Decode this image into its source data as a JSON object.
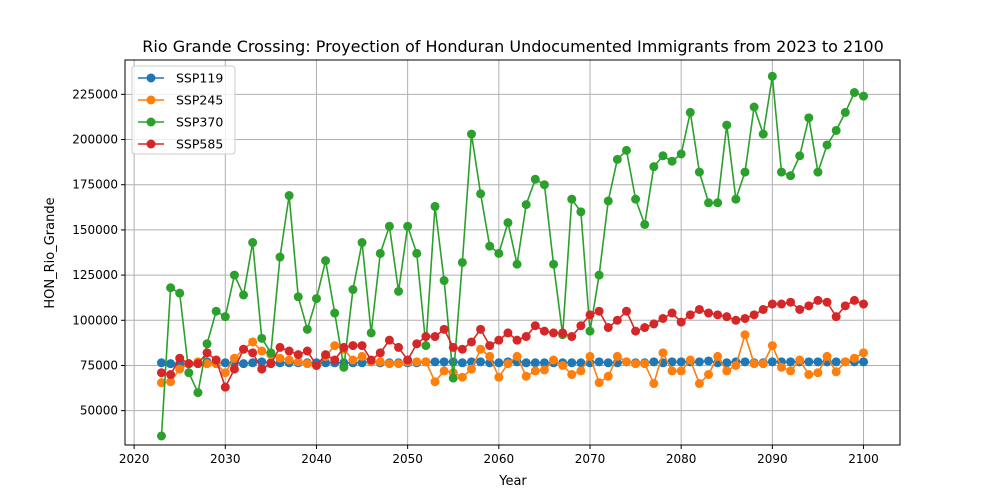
{
  "chart_data": {
    "type": "line",
    "title": "Rio Grande Crossing: Proyection of Honduran Undocumented Immigrants from 2023 to 2100",
    "xlabel": "Year",
    "ylabel": "HON_Rio_Grande",
    "xlim": [
      2019,
      2104
    ],
    "ylim": [
      31000,
      244000
    ],
    "xticks": [
      2020,
      2030,
      2040,
      2050,
      2060,
      2070,
      2080,
      2090,
      2100
    ],
    "yticks": [
      50000,
      75000,
      100000,
      125000,
      150000,
      175000,
      200000,
      225000
    ],
    "grid": true,
    "legend": "top-left",
    "x": [
      2023,
      2024,
      2025,
      2026,
      2027,
      2028,
      2029,
      2030,
      2031,
      2032,
      2033,
      2034,
      2035,
      2036,
      2037,
      2038,
      2039,
      2040,
      2041,
      2042,
      2043,
      2044,
      2045,
      2046,
      2047,
      2048,
      2049,
      2050,
      2051,
      2052,
      2053,
      2054,
      2055,
      2056,
      2057,
      2058,
      2059,
      2060,
      2061,
      2062,
      2063,
      2064,
      2065,
      2066,
      2067,
      2068,
      2069,
      2070,
      2071,
      2072,
      2073,
      2074,
      2075,
      2076,
      2077,
      2078,
      2079,
      2080,
      2081,
      2082,
      2083,
      2084,
      2085,
      2086,
      2087,
      2088,
      2089,
      2090,
      2091,
      2092,
      2093,
      2094,
      2095,
      2096,
      2097,
      2098,
      2099,
      2100
    ],
    "series": [
      {
        "name": "SSP119",
        "color": "#1f77b4",
        "values": [
          76500,
          76000,
          76000,
          76000,
          76200,
          77000,
          76000,
          76500,
          76500,
          76000,
          76500,
          77000,
          76500,
          76500,
          76500,
          76500,
          76500,
          76500,
          76500,
          76500,
          76500,
          76500,
          76500,
          77000,
          76500,
          76500,
          76500,
          76500,
          76500,
          77000,
          77000,
          77000,
          77000,
          76500,
          77000,
          77000,
          76500,
          76500,
          77000,
          77000,
          76500,
          76500,
          76500,
          76500,
          76500,
          76500,
          76500,
          76500,
          77000,
          76500,
          76500,
          77000,
          76500,
          76500,
          77000,
          76500,
          77000,
          77000,
          77000,
          77000,
          77500,
          76500,
          76500,
          77000,
          77000,
          76500,
          76500,
          77000,
          77000,
          77000,
          77000,
          77000,
          77000,
          77000,
          77000,
          77000,
          77000,
          77000
        ]
      },
      {
        "name": "SSP245",
        "color": "#ff7f0e",
        "values": [
          65500,
          66000,
          73000,
          76000,
          77000,
          76000,
          76000,
          71000,
          79000,
          84000,
          88000,
          83000,
          81000,
          79000,
          78000,
          77000,
          76000,
          75000,
          80000,
          86000,
          84000,
          78000,
          80000,
          77000,
          77000,
          76000,
          76000,
          77000,
          77000,
          77000,
          66000,
          72000,
          71000,
          68500,
          73000,
          84000,
          80000,
          68500,
          76000,
          80000,
          69000,
          72000,
          72500,
          78000,
          75000,
          70000,
          72000,
          80000,
          65500,
          69000,
          80000,
          77000,
          76000,
          76000,
          65000,
          82000,
          72000,
          72000,
          78000,
          65000,
          70000,
          80000,
          72000,
          75000,
          92000,
          76000,
          76000,
          86000,
          74000,
          72000,
          78000,
          70000,
          71000,
          80000,
          71500,
          77000,
          79000,
          82000
        ]
      },
      {
        "name": "SSP370",
        "color": "#2ca02c",
        "values": [
          36000,
          118000,
          115000,
          71000,
          60000,
          87000,
          105000,
          102000,
          125000,
          114000,
          143000,
          90000,
          82000,
          135000,
          169000,
          113000,
          95000,
          112000,
          133000,
          104000,
          74000,
          117000,
          143000,
          93000,
          137000,
          152000,
          116000,
          152000,
          137000,
          86000,
          163000,
          122000,
          68000,
          132000,
          203000,
          170000,
          141000,
          137000,
          154000,
          131000,
          164000,
          178000,
          175000,
          131000,
          92000,
          167000,
          160000,
          94000,
          125000,
          166000,
          189000,
          194000,
          167000,
          153000,
          185000,
          191000,
          188000,
          192000,
          215000,
          182000,
          165000,
          165000,
          208000,
          167000,
          182000,
          218000,
          203000,
          235000,
          182000,
          180000,
          191000,
          212000,
          182000,
          197000,
          205000,
          215000,
          226000,
          224000
        ]
      },
      {
        "name": "SSP585",
        "color": "#d62728",
        "values": [
          71000,
          70000,
          79000,
          76000,
          76000,
          82000,
          78000,
          63000,
          73000,
          84000,
          82000,
          73000,
          76000,
          85000,
          83000,
          81000,
          83000,
          75000,
          81000,
          78000,
          85000,
          86000,
          86000,
          78000,
          82000,
          89000,
          85000,
          78000,
          87000,
          91000,
          91000,
          95000,
          85000,
          84000,
          88000,
          95000,
          86000,
          89000,
          93000,
          89000,
          91000,
          97000,
          94000,
          93000,
          93000,
          91000,
          97000,
          103000,
          105000,
          96000,
          100000,
          105000,
          94000,
          96000,
          98000,
          101000,
          104000,
          99000,
          103000,
          106000,
          104000,
          103000,
          102000,
          100000,
          101000,
          103000,
          106000,
          109000,
          109000,
          110000,
          106000,
          108000,
          111000,
          110000,
          102000,
          108000,
          111000,
          109000
        ]
      }
    ]
  }
}
